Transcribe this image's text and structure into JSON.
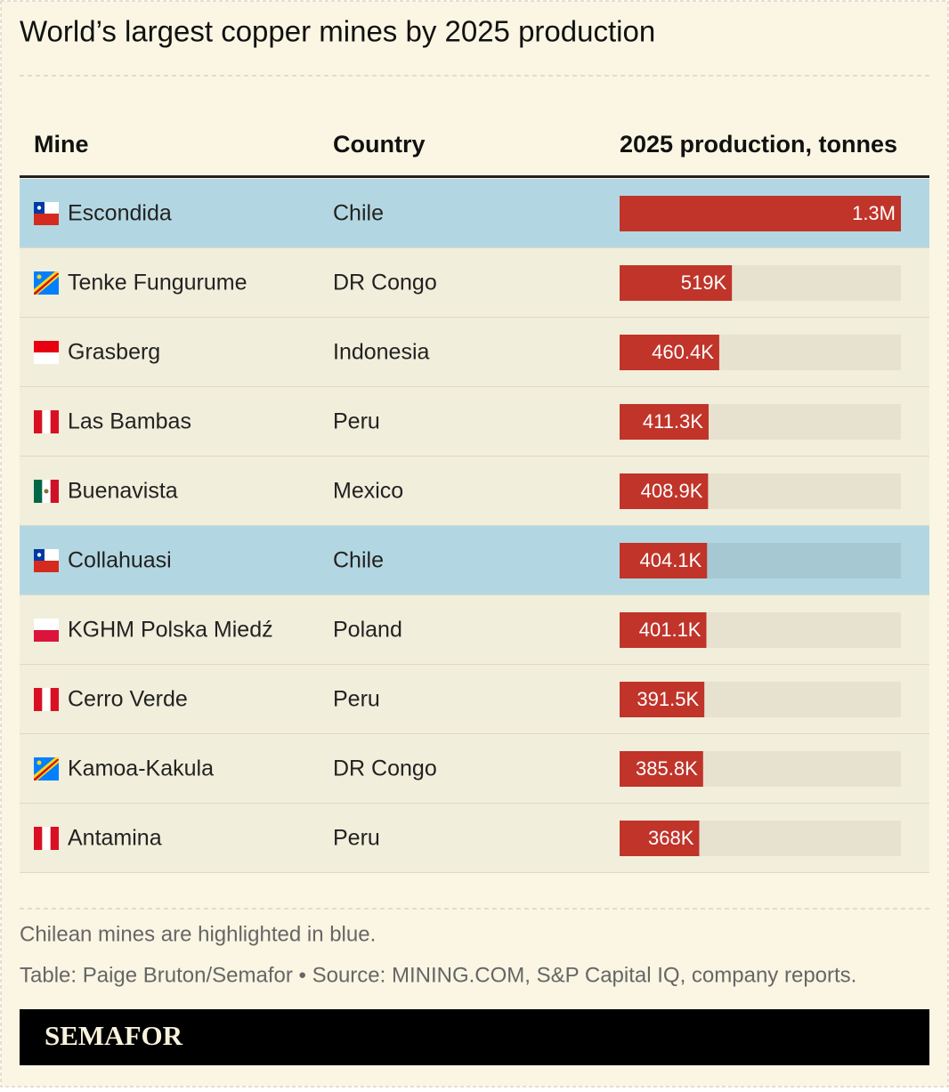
{
  "chart_data": {
    "type": "bar",
    "title": "World’s largest copper mines by 2025 production",
    "columns": [
      "Mine",
      "Country",
      "2025 production, tonnes"
    ],
    "categories": [
      "Escondida",
      "Tenke Fungurume",
      "Grasberg",
      "Las Bambas",
      "Buenavista",
      "Collahuasi",
      "KGHM Polska Miedź",
      "Cerro Verde",
      "Kamoa-Kakula",
      "Antamina"
    ],
    "countries": [
      "Chile",
      "DR Congo",
      "Indonesia",
      "Peru",
      "Mexico",
      "Chile",
      "Poland",
      "Peru",
      "DR Congo",
      "Peru"
    ],
    "values": [
      1300000,
      519000,
      460400,
      411300,
      408900,
      404100,
      401100,
      391500,
      385800,
      368000
    ],
    "value_labels": [
      "1.3M",
      "519K",
      "460.4K",
      "411.3K",
      "408.9K",
      "404.1K",
      "401.1K",
      "391.5K",
      "385.8K",
      "368K"
    ],
    "xlim": [
      0,
      1300000
    ],
    "color": "#c0342a",
    "highlight_country": "Chile",
    "highlight_color": "#b3d7e2",
    "note": "Chilean mines are highlighted in blue.",
    "source": "Table: Paige Bruton/Semafor • Source: MINING.COM, S&P Capital IQ, company reports.",
    "logo": "SEMAFOR"
  }
}
